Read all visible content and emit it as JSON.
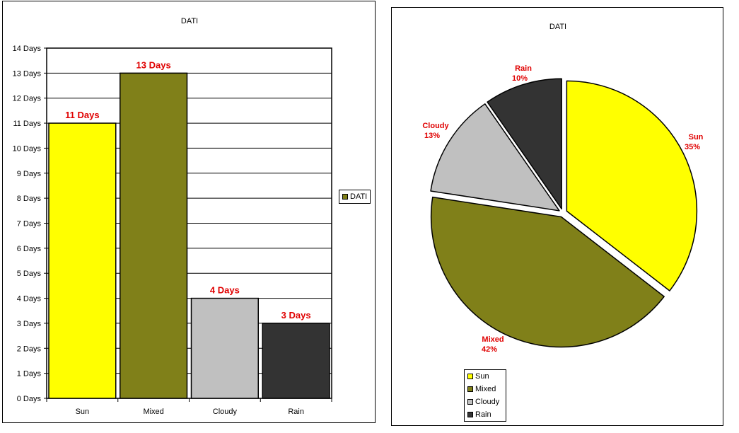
{
  "charts": [
    {
      "type": "bar",
      "title": "DATI",
      "categories": [
        "Sun",
        "Mixed",
        "Cloudy",
        "Rain"
      ],
      "values": [
        11,
        13,
        4,
        3
      ],
      "data_labels": [
        "11 Days",
        "13 Days",
        "4 Days",
        "3 Days"
      ],
      "colors": [
        "#ffff00",
        "#808019",
        "#c0c0c0",
        "#333333"
      ],
      "label_color": "#e00000",
      "ylim": [
        0,
        14
      ],
      "y_ticks": [
        "0 Days",
        "1 Days",
        "2 Days",
        "3 Days",
        "4 Days",
        "5 Days",
        "6 Days",
        "7 Days",
        "8 Days",
        "9 Days",
        "10 Days",
        "11 Days",
        "12 Days",
        "13 Days",
        "14 Days"
      ],
      "grid": true,
      "legend": {
        "position": "right",
        "entries": [
          "DATI"
        ],
        "color": "#808019"
      }
    },
    {
      "type": "pie",
      "title": "DATI",
      "categories": [
        "Sun",
        "Mixed",
        "Cloudy",
        "Rain"
      ],
      "values": [
        11,
        13,
        4,
        3
      ],
      "percent_labels": [
        "35%",
        "42%",
        "13%",
        "10%"
      ],
      "colors": [
        "#ffff00",
        "#808019",
        "#c0c0c0",
        "#333333"
      ],
      "label_color": "#e00000",
      "legend": {
        "position": "bottom-left",
        "entries": [
          "Sun",
          "Mixed",
          "Cloudy",
          "Rain"
        ]
      }
    }
  ]
}
